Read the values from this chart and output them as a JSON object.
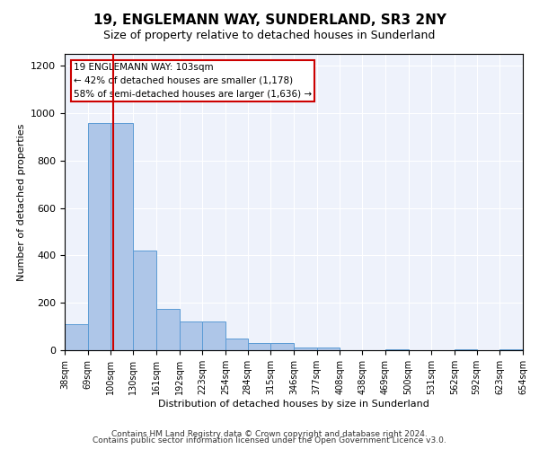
{
  "title": "19, ENGLEMANN WAY, SUNDERLAND, SR3 2NY",
  "subtitle": "Size of property relative to detached houses in Sunderland",
  "xlabel": "Distribution of detached houses by size in Sunderland",
  "ylabel": "Number of detached properties",
  "footer_line1": "Contains HM Land Registry data © Crown copyright and database right 2024.",
  "footer_line2": "Contains public sector information licensed under the Open Government Licence v3.0.",
  "annotation_line1": "19 ENGLEMANN WAY: 103sqm",
  "annotation_line2": "← 42% of detached houses are smaller (1,178)",
  "annotation_line3": "58% of semi-detached houses are larger (1,636) →",
  "property_size": 103,
  "bar_edges": [
    38,
    69,
    100,
    130,
    161,
    192,
    223,
    254,
    284,
    315,
    346,
    377,
    408,
    438,
    469,
    500,
    531,
    562,
    592,
    623,
    654
  ],
  "bar_heights": [
    110,
    960,
    960,
    420,
    175,
    120,
    120,
    50,
    30,
    30,
    10,
    10,
    0,
    0,
    5,
    0,
    0,
    5,
    0,
    5
  ],
  "bar_color": "#aec6e8",
  "bar_edgecolor": "#5b9bd5",
  "redline_color": "#cc0000",
  "bg_color": "#eef2fb",
  "annotation_box_edgecolor": "#cc0000",
  "annotation_box_facecolor": "#ffffff",
  "ylim": [
    0,
    1250
  ],
  "yticks": [
    0,
    200,
    400,
    600,
    800,
    1000,
    1200
  ]
}
